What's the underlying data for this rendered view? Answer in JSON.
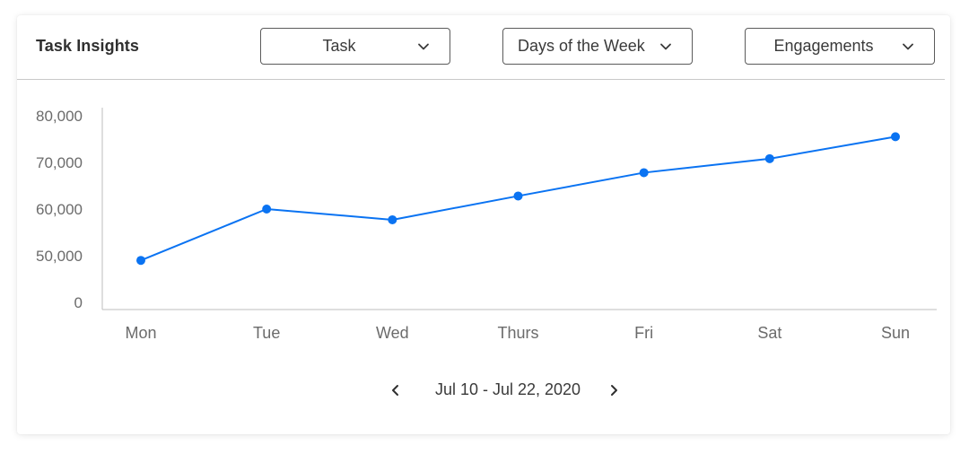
{
  "card": {
    "title": "Task Insights"
  },
  "filters": {
    "metric_type": {
      "label": "Task"
    },
    "period": {
      "label": "Days of the Week"
    },
    "measure": {
      "label": "Engagements"
    }
  },
  "icons": {
    "dropdown": "chevron-down-icon",
    "prev": "chevron-left-icon",
    "next": "chevron-right-icon"
  },
  "pager": {
    "range": "Jul 10 - Jul 22, 2020"
  },
  "colors": {
    "accent": "#0a73f2",
    "axis": "#bdbdbd",
    "text": "#3a3a3a",
    "tick": "#6b6b6b"
  },
  "chart_data": {
    "type": "line",
    "title": "",
    "xlabel": "",
    "ylabel": "",
    "categories": [
      "Mon",
      "Tue",
      "Wed",
      "Thurs",
      "Fri",
      "Sat",
      "Sun"
    ],
    "y_ticks": [
      0,
      50000,
      60000,
      70000,
      80000
    ],
    "y_tick_labels": [
      "0",
      "50,000",
      "60,000",
      "70,000",
      "80,000"
    ],
    "ylim": [
      0,
      80000
    ],
    "y_axis_break": "0 to 50,000 compressed",
    "grid": false,
    "legend": "none",
    "series": [
      {
        "values": [
          45000,
          60000,
          57700,
          62800,
          67800,
          70800,
          75500
        ]
      }
    ]
  }
}
